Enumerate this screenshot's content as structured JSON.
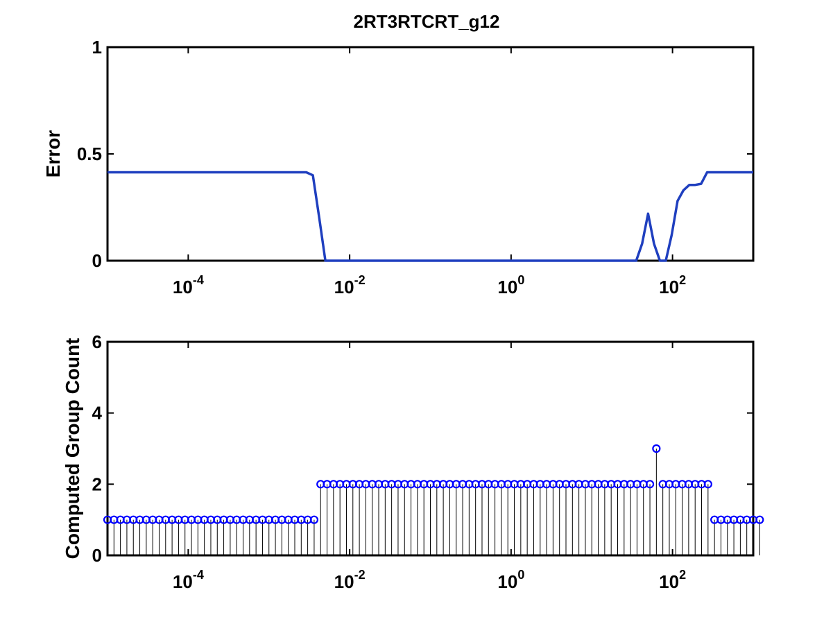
{
  "figure": {
    "title": "2RT3RTCRT_g12",
    "line_color": "#1f3fbf",
    "marker_color": "#0000ff",
    "stem_color": "#000000"
  },
  "chart_data": [
    {
      "type": "line",
      "xscale": "log",
      "xlim": [
        1e-05,
        1000
      ],
      "ylim": [
        0,
        1
      ],
      "xticks": [
        {
          "base": "10",
          "exp": "-4",
          "value": 0.0001
        },
        {
          "base": "10",
          "exp": "-2",
          "value": 0.01
        },
        {
          "base": "10",
          "exp": "0",
          "value": 1
        },
        {
          "base": "10",
          "exp": "2",
          "value": 100
        }
      ],
      "yticks": [
        "0",
        "0.5",
        "1"
      ],
      "ylabel": "Error",
      "xlabel": "",
      "grid": false,
      "series": [
        {
          "x": [
            1e-05,
            0.0029,
            0.0035,
            0.0042,
            0.005,
            30.1,
            35.5,
            42.0,
            49.8,
            58.9,
            69.7,
            82.5,
            97.6,
            115.5,
            136.7,
            161.8,
            191.4,
            226.5,
            268.1,
            1000
          ],
          "y": [
            0.414,
            0.414,
            0.4,
            0.2,
            0.0,
            0.0,
            0.0,
            0.08,
            0.22,
            0.08,
            0.0,
            0.0,
            0.12,
            0.28,
            0.33,
            0.355,
            0.355,
            0.36,
            0.414,
            0.414
          ]
        }
      ]
    },
    {
      "type": "stem",
      "xscale": "log",
      "xlim": [
        1e-05,
        1000
      ],
      "ylim": [
        0,
        6
      ],
      "xticks": [
        {
          "base": "10",
          "exp": "-4",
          "value": 0.0001
        },
        {
          "base": "10",
          "exp": "-2",
          "value": 0.01
        },
        {
          "base": "10",
          "exp": "0",
          "value": 1
        },
        {
          "base": "10",
          "exp": "2",
          "value": 100
        }
      ],
      "yticks": [
        "0",
        "2",
        "4",
        "6"
      ],
      "ylabel": "Computed Group Count",
      "xlabel": "",
      "grid": false,
      "x_log10_start": -5,
      "x_log10_end": 3,
      "n_points": 101,
      "values": [
        1,
        1,
        1,
        1,
        1,
        1,
        1,
        1,
        1,
        1,
        1,
        1,
        1,
        1,
        1,
        1,
        1,
        1,
        1,
        1,
        1,
        1,
        1,
        1,
        1,
        1,
        1,
        1,
        1,
        1,
        1,
        1,
        1,
        2,
        2,
        2,
        2,
        2,
        2,
        2,
        2,
        2,
        2,
        2,
        2,
        2,
        2,
        2,
        2,
        2,
        2,
        2,
        2,
        2,
        2,
        2,
        2,
        2,
        2,
        2,
        2,
        2,
        2,
        2,
        2,
        2,
        2,
        2,
        2,
        2,
        2,
        2,
        2,
        2,
        2,
        2,
        2,
        2,
        2,
        2,
        2,
        2,
        2,
        2,
        2,
        3,
        2,
        2,
        2,
        2,
        2,
        2,
        2,
        2,
        1,
        1,
        1,
        1,
        1,
        1,
        1,
        1
      ]
    }
  ]
}
